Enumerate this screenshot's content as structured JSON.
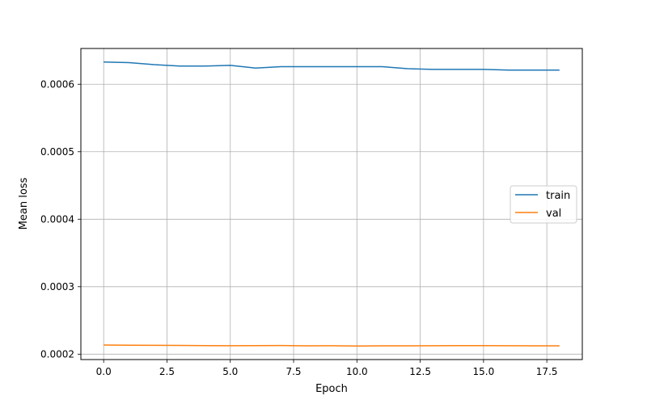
{
  "chart_data": {
    "type": "line",
    "title": "",
    "xlabel": "Epoch",
    "ylabel": "Mean loss",
    "xlim": [
      -0.9,
      18.9
    ],
    "ylim": [
      0.000192,
      0.000653
    ],
    "xticks": [
      0.0,
      2.5,
      5.0,
      7.5,
      10.0,
      12.5,
      15.0,
      17.5
    ],
    "xtick_labels": [
      "0.0",
      "2.5",
      "5.0",
      "7.5",
      "10.0",
      "12.5",
      "15.0",
      "17.5"
    ],
    "yticks": [
      0.0002,
      0.0003,
      0.0004,
      0.0005,
      0.0006
    ],
    "ytick_labels": [
      "0.0002",
      "0.0003",
      "0.0004",
      "0.0005",
      "0.0006"
    ],
    "grid": true,
    "legend_position": "center-right",
    "x": [
      0,
      1,
      2,
      3,
      4,
      5,
      6,
      7,
      8,
      9,
      10,
      11,
      12,
      13,
      14,
      15,
      16,
      17,
      18
    ],
    "series": [
      {
        "name": "train",
        "color": "#1f77b4",
        "values": [
          0.000633,
          0.000632,
          0.000629,
          0.000627,
          0.000627,
          0.000628,
          0.000624,
          0.000626,
          0.000626,
          0.000626,
          0.000626,
          0.000626,
          0.000623,
          0.000622,
          0.000622,
          0.000622,
          0.000621,
          0.000621,
          0.000621
        ]
      },
      {
        "name": "val",
        "color": "#ff7f0e",
        "values": [
          0.0002135,
          0.0002133,
          0.0002131,
          0.000213,
          0.0002126,
          0.0002125,
          0.0002126,
          0.0002128,
          0.0002124,
          0.0002125,
          0.000212,
          0.0002123,
          0.0002123,
          0.0002125,
          0.0002126,
          0.0002126,
          0.0002125,
          0.0002124,
          0.0002123
        ]
      }
    ]
  }
}
